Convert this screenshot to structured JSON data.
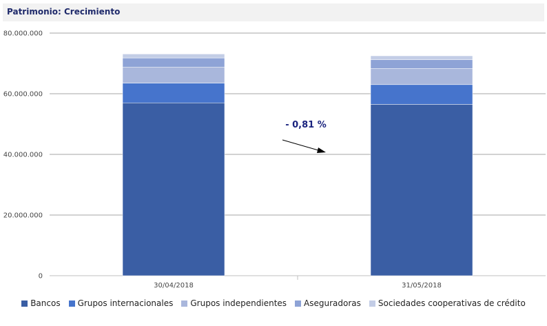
{
  "header": {
    "title": "Patrimonio: Crecimiento"
  },
  "chart_data": {
    "type": "bar",
    "stacked": true,
    "title": "Patrimonio: Crecimiento",
    "categories": [
      "30/04/2018",
      "31/05/2018"
    ],
    "y_tick_labels": [
      "0",
      "20.000.000",
      "40.000.000",
      "60.000.000",
      "80.000.000"
    ],
    "y_ticks": [
      0,
      20000000,
      40000000,
      60000000,
      80000000
    ],
    "ylim": [
      0,
      80000000
    ],
    "grid": true,
    "legend_position": "bottom",
    "series": [
      {
        "name": "Bancos",
        "color": "#3a5ea4",
        "values": [
          57000000,
          56500000
        ]
      },
      {
        "name": "Grupos internacionales",
        "color": "#4674cc",
        "values": [
          6500000,
          6500000
        ]
      },
      {
        "name": "Grupos independientes",
        "color": "#a9b7dc",
        "values": [
          5300000,
          5300000
        ]
      },
      {
        "name": "Aseguradoras",
        "color": "#8ea3d6",
        "values": [
          3000000,
          2900000
        ]
      },
      {
        "name": "Sociedades cooperativas de crédito",
        "color": "#c3cde6",
        "values": [
          1300000,
          1300000
        ]
      }
    ],
    "annotation": {
      "text": "- 0,81 %",
      "color": "#1a237e"
    }
  }
}
